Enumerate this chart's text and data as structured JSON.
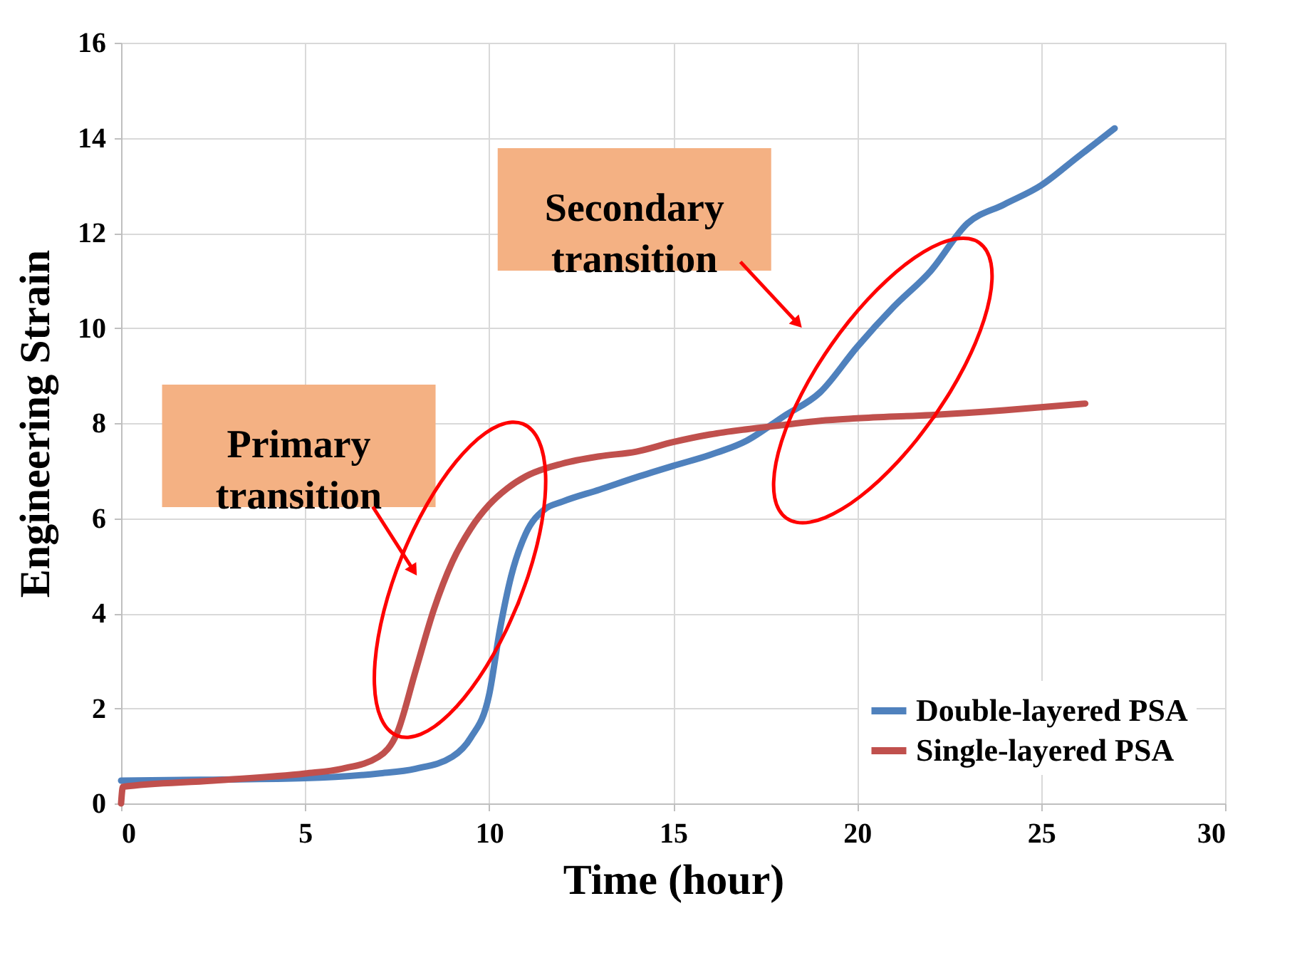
{
  "chart_data": {
    "type": "line",
    "xlabel": "Time (hour)",
    "ylabel": "Engineering Strain",
    "xlim": [
      0,
      30
    ],
    "ylim": [
      0,
      16
    ],
    "xticks": [
      0,
      5,
      10,
      15,
      20,
      25,
      30
    ],
    "yticks": [
      0,
      2,
      4,
      6,
      8,
      10,
      12,
      14,
      16
    ],
    "grid": true,
    "legend": "bottom right",
    "marker": "none",
    "line_style": "solid",
    "series": [
      {
        "name": "Double-layered PSA",
        "color": "#4f81bd",
        "x": [
          0,
          2.5,
          5,
          7,
          8,
          9,
          9.5,
          10,
          10.3,
          10.6,
          11,
          11.5,
          12,
          13,
          14,
          15,
          16,
          17,
          18,
          19,
          20,
          21,
          22,
          23,
          24,
          25,
          26,
          27
        ],
        "values": [
          0.48,
          0.5,
          0.53,
          0.63,
          0.73,
          0.98,
          1.38,
          2.28,
          3.68,
          4.78,
          5.68,
          6.18,
          6.35,
          6.6,
          6.86,
          7.1,
          7.33,
          7.63,
          8.14,
          8.65,
          9.6,
          10.45,
          11.2,
          12.2,
          12.6,
          13.0,
          13.6,
          14.2
        ]
      },
      {
        "name": "Single-layered PSA",
        "color": "#c0504d",
        "x": [
          0,
          0.05,
          2.5,
          5,
          6,
          7,
          7.5,
          8,
          8.5,
          9,
          9.5,
          10,
          10.5,
          11,
          12,
          13,
          14,
          15,
          16,
          17,
          18,
          19,
          20,
          22,
          24,
          26.2
        ],
        "values": [
          0,
          0.35,
          0.48,
          0.63,
          0.73,
          0.98,
          1.48,
          2.78,
          4.08,
          5.08,
          5.78,
          6.28,
          6.63,
          6.88,
          7.15,
          7.3,
          7.4,
          7.6,
          7.76,
          7.87,
          7.96,
          8.05,
          8.1,
          8.17,
          8.27,
          8.41
        ]
      }
    ],
    "annotations": [
      "Primary transition",
      "Secondary transition"
    ]
  }
}
